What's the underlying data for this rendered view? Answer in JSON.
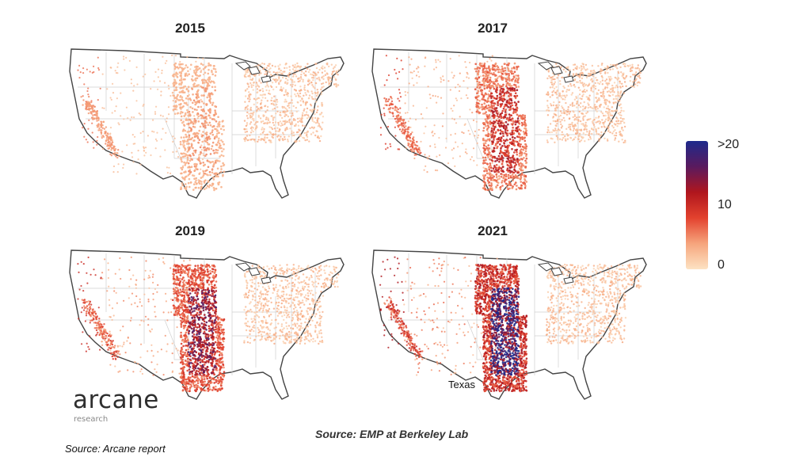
{
  "panels": [
    {
      "year": "2015",
      "intensity": 0.15
    },
    {
      "year": "2017",
      "intensity": 0.5
    },
    {
      "year": "2019",
      "intensity": 0.7
    },
    {
      "year": "2021",
      "intensity": 1.0
    }
  ],
  "legend": {
    "max_label": ">20",
    "mid_label": "10",
    "min_label": "0",
    "colors": [
      "#fde3c3",
      "#f6a57d",
      "#e3422e",
      "#b0161d",
      "#5a1a5e",
      "#1e2a8c"
    ]
  },
  "annotation": {
    "region_label": "Texas"
  },
  "logo": {
    "name": "arcane",
    "sub": "research"
  },
  "source_center": "Source: EMP at Berkeley Lab",
  "source_bottom": "Source: Arcane report"
}
